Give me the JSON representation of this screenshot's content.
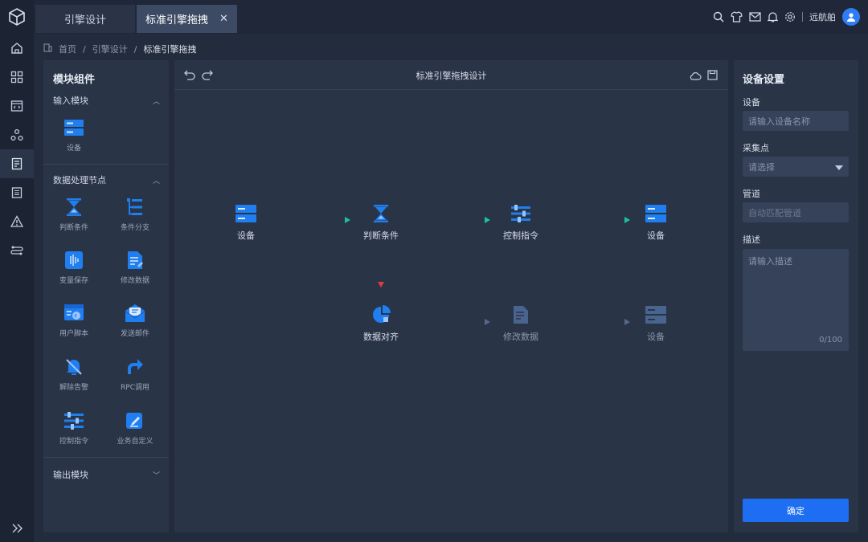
{
  "tabs": [
    {
      "label": "引擎设计"
    },
    {
      "label": "标准引擎拖拽",
      "close": "✕"
    }
  ],
  "user": {
    "name": "远航舶"
  },
  "breadcrumb": {
    "home": "首页",
    "sep": "/",
    "level2": "引擎设计",
    "current": "标准引擎拖拽"
  },
  "left": {
    "title": "模块组件",
    "input_section": "输入模块",
    "input_items": [
      {
        "label": "设备",
        "icon": "device-icon"
      }
    ],
    "process_section": "数据处理节点",
    "process_items": [
      {
        "label": "判断条件",
        "icon": "hourglass-icon"
      },
      {
        "label": "条件分支",
        "icon": "branch-icon"
      },
      {
        "label": "变量保存",
        "icon": "variable-save-icon"
      },
      {
        "label": "修改数据",
        "icon": "edit-data-icon"
      },
      {
        "label": "用户脚本",
        "icon": "script-icon"
      },
      {
        "label": "发送邮件",
        "icon": "mail-icon"
      },
      {
        "label": "解除告警",
        "icon": "alarm-off-icon"
      },
      {
        "label": "RPC调用",
        "icon": "rpc-icon"
      },
      {
        "label": "控制指令",
        "icon": "control-icon"
      },
      {
        "label": "业务自定义",
        "icon": "custom-edit-icon"
      }
    ],
    "output_section": "输出模块"
  },
  "canvas": {
    "title": "标准引擎拖拽设计",
    "nodes": {
      "device1": "设备",
      "judge": "判断条件",
      "control": "控制指令",
      "device2": "设备",
      "align": "数据对齐",
      "modify": "修改数据",
      "device3": "设备"
    },
    "colors": {
      "success": "#19c3a0",
      "error": "#e23c3c",
      "pending": "#56698c"
    }
  },
  "right": {
    "title": "设备设置",
    "device_label": "设备",
    "device_placeholder": "请输入设备名称",
    "point_label": "采集点",
    "point_value": "请选择",
    "pipe_label": "管道",
    "pipe_value": "自动匹配管道",
    "desc_label": "描述",
    "desc_placeholder": "请输入描述",
    "desc_count": "0/100",
    "ok": "确定"
  },
  "accent": "#1d6ef2"
}
